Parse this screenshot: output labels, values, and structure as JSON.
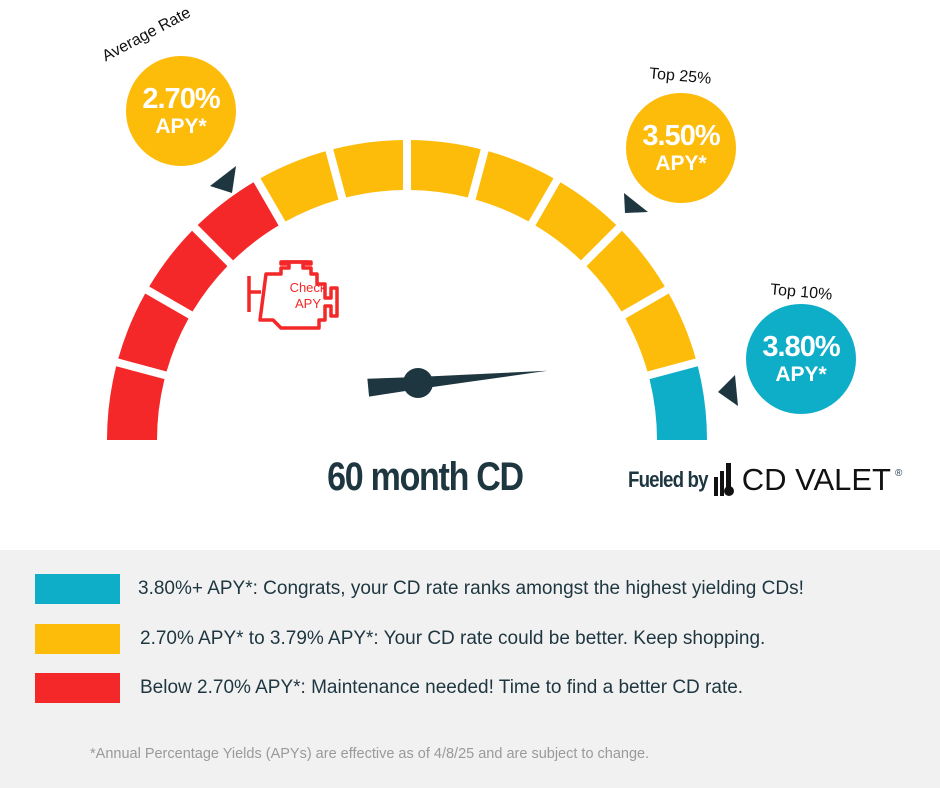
{
  "gauge": {
    "segments": [
      "red",
      "red",
      "red",
      "red",
      "yellow",
      "yellow",
      "yellow",
      "yellow",
      "yellow",
      "yellow",
      "yellow",
      "cyan"
    ],
    "needle_value_fraction": 0.97,
    "center_label": [
      "Check",
      "APY"
    ],
    "title": "60 month CD"
  },
  "colors": {
    "red": "#f42828",
    "yellow": "#fdbb0a",
    "cyan": "#0eaec9",
    "dark": "#1e3640"
  },
  "bubbles": [
    {
      "label": "Average Rate",
      "rate": "2.70%",
      "apy": "APY*",
      "color": "yellow"
    },
    {
      "label": "Top 25%",
      "rate": "3.50%",
      "apy": "APY*",
      "color": "yellow"
    },
    {
      "label": "Top 10%",
      "rate": "3.80%",
      "apy": "APY*",
      "color": "cyan"
    }
  ],
  "brand": {
    "fueled_by": "Fueled by",
    "name": "CD VALET",
    "reg": "®"
  },
  "legend": {
    "items": [
      {
        "color": "cyan",
        "text": "3.80%+ APY*: Congrats, your CD rate ranks amongst the highest yielding CDs!"
      },
      {
        "color": "yellow",
        "text": "2.70% APY* to 3.79% APY*: Your CD rate could be better. Keep shopping."
      },
      {
        "color": "red",
        "text": "Below 2.70% APY*: Maintenance needed! Time to find a better CD rate."
      }
    ],
    "footnote": "*Annual Percentage Yields (APYs) are effective as of 4/8/25 and are subject to change."
  }
}
